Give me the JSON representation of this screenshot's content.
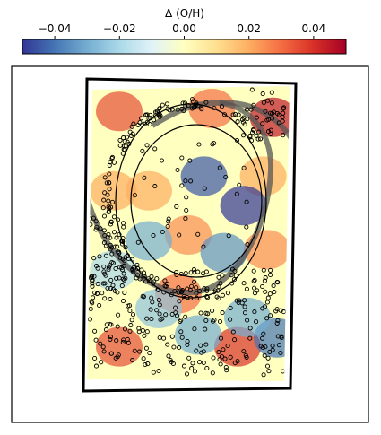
{
  "chart_data": {
    "type": "heatmap",
    "title": "",
    "colorbar": {
      "label": "Δ (O/H)",
      "range": [
        -0.05,
        0.05
      ],
      "ticks": [
        -0.04,
        -0.02,
        0.0,
        0.02,
        0.04
      ],
      "tick_labels": [
        "−0.04",
        "−0.02",
        "0.00",
        "0.02",
        "0.04"
      ],
      "colormap": "RdYlBu_r",
      "position": "top"
    },
    "map": {
      "description_field": "smoothed residual metallicity map",
      "cold_spots": [
        {
          "u": 0.58,
          "v": 0.3,
          "value": -0.045
        },
        {
          "u": 0.78,
          "v": 0.4,
          "value": -0.05
        },
        {
          "u": 0.68,
          "v": 0.56,
          "value": -0.035
        },
        {
          "u": 0.3,
          "v": 0.52,
          "value": -0.03
        },
        {
          "u": 0.35,
          "v": 0.75,
          "value": -0.025
        },
        {
          "u": 0.55,
          "v": 0.84,
          "value": -0.03
        },
        {
          "u": 0.95,
          "v": 0.85,
          "value": -0.04
        },
        {
          "u": 0.12,
          "v": 0.62,
          "value": -0.02
        },
        {
          "u": 0.8,
          "v": 0.78,
          "value": -0.03
        }
      ],
      "hot_spots": [
        {
          "u": 0.15,
          "v": 0.08,
          "value": 0.035
        },
        {
          "u": 0.62,
          "v": 0.07,
          "value": 0.03
        },
        {
          "u": 0.93,
          "v": 0.1,
          "value": 0.045
        },
        {
          "u": 0.3,
          "v": 0.35,
          "value": 0.02
        },
        {
          "u": 0.5,
          "v": 0.5,
          "value": 0.025
        },
        {
          "u": 0.12,
          "v": 0.35,
          "value": 0.02
        },
        {
          "u": 0.45,
          "v": 0.7,
          "value": 0.03
        },
        {
          "u": 0.15,
          "v": 0.88,
          "value": 0.035
        },
        {
          "u": 0.75,
          "v": 0.88,
          "value": 0.04
        },
        {
          "u": 0.9,
          "v": 0.55,
          "value": 0.025
        },
        {
          "u": 0.88,
          "v": 0.3,
          "value": 0.02
        }
      ]
    },
    "ellipses": [
      {
        "center": [
          0.5,
          0.43
        ],
        "radii": [
          0.35,
          0.36
        ],
        "label": ""
      },
      {
        "center": [
          0.5,
          0.43
        ],
        "radii": [
          0.31,
          0.31
        ],
        "label": ""
      }
    ],
    "spiral_arm_curve": {
      "shape": "arc",
      "style": "thick gray translucent"
    },
    "grid": false,
    "legend": "none"
  }
}
